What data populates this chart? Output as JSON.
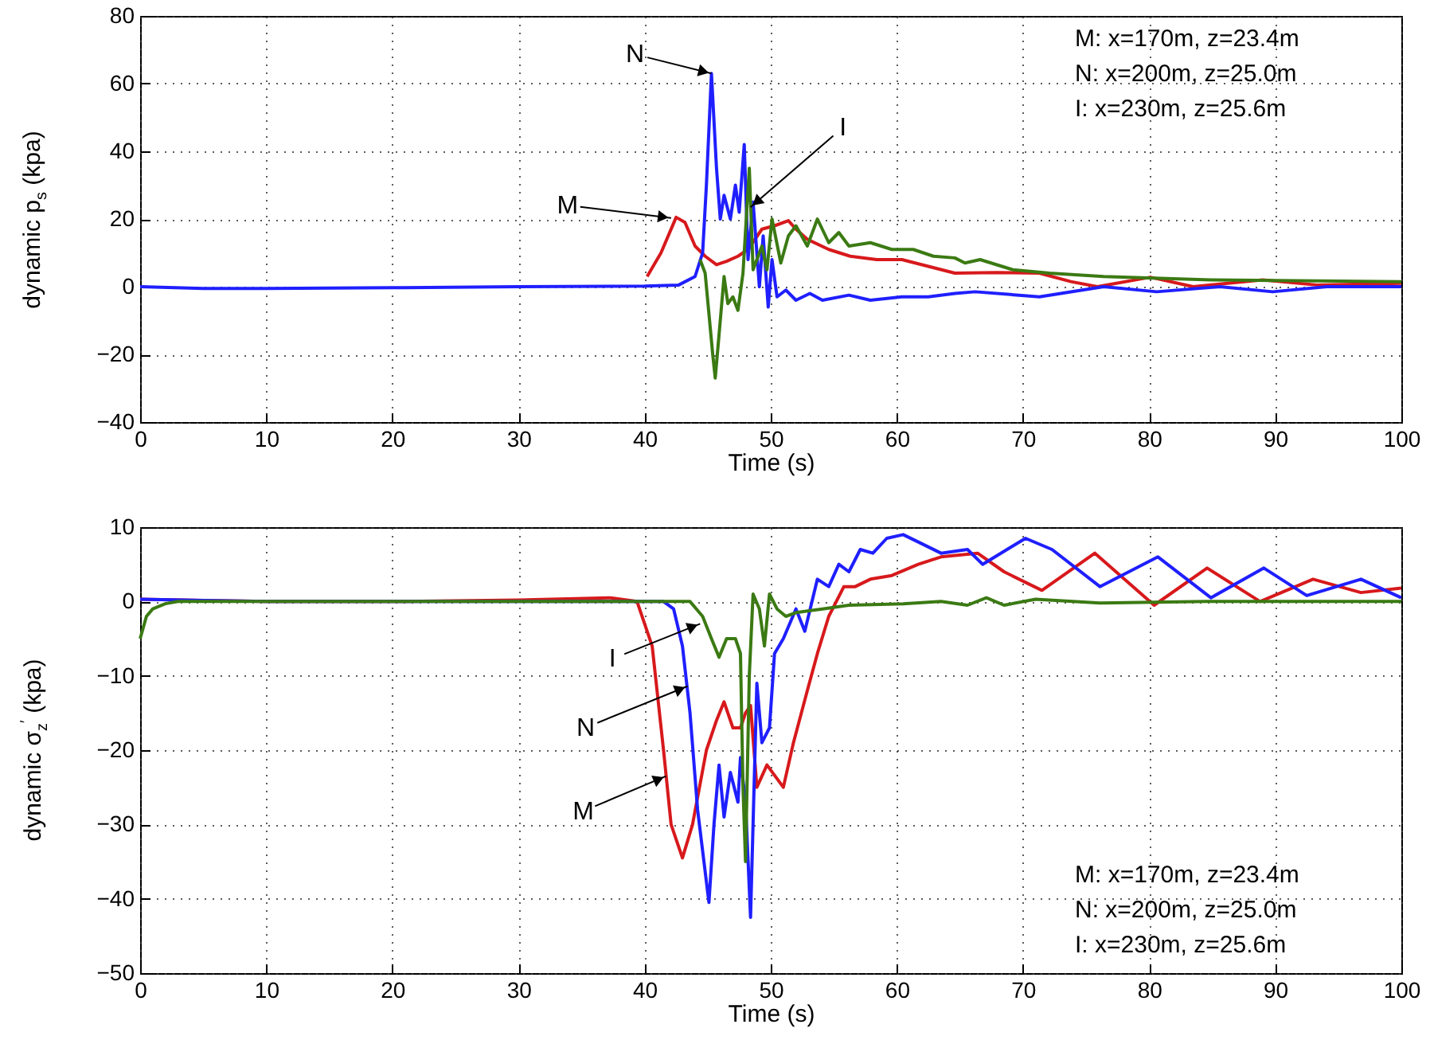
{
  "chart_data": [
    {
      "type": "line",
      "xlabel": "Time  (s)",
      "ylabel": "dynamic p$_{s}$ (kpa)",
      "xlim": [
        0,
        100
      ],
      "xticks": [
        0,
        10,
        20,
        30,
        40,
        50,
        60,
        70,
        80,
        90,
        100
      ],
      "ylim": [
        -40,
        80
      ],
      "yticks": [
        -40,
        -20,
        0,
        20,
        40,
        60,
        80
      ],
      "grid": true,
      "annotations": [
        "M: x=170m, z=23.4m",
        "N: x=200m, z=25.0m",
        "I:  x=230m, z=25.6m",
        {
          "text": "N",
          "x": 45.3,
          "y": 63
        },
        {
          "text": "M",
          "x": 42.1,
          "y": 20.3
        },
        {
          "text": "I",
          "x": 48.4,
          "y": 23.5
        }
      ],
      "series": [
        {
          "color": "#d7191c",
          "x": [
            40.2,
            41.3,
            42.5,
            43.2,
            44,
            44.8,
            45.7,
            46.5,
            47.4,
            48.2,
            49.3,
            50.3,
            51.4,
            52,
            52.9,
            54.6,
            56.3,
            58.4,
            60.4,
            62.5,
            64.6,
            67.9,
            71.3,
            73.8,
            75.9,
            80.1,
            83.5,
            89,
            93.3,
            100
          ],
          "values": [
            3,
            10,
            20.5,
            19,
            12,
            9,
            6.5,
            7.5,
            9,
            11,
            17,
            18,
            19.5,
            17,
            14,
            11,
            9,
            8,
            8,
            6,
            4,
            4.2,
            4,
            1.5,
            0,
            2.8,
            0,
            2,
            0.5,
            1
          ]
        },
        {
          "color": "#1f1fff",
          "x": [
            0,
            5,
            10,
            20,
            30,
            40,
            42.7,
            44,
            44.6,
            44.9,
            45.3,
            45.7,
            46,
            46.3,
            46.8,
            47.2,
            47.5,
            47.9,
            48.2,
            48.6,
            49.1,
            49.4,
            49.8,
            50.1,
            50.5,
            51.2,
            52,
            53.1,
            54.1,
            56.2,
            57.9,
            60.4,
            62.5,
            64.6,
            66.2,
            71.3,
            76.4,
            80.6,
            85.6,
            89.8,
            94.1,
            100
          ],
          "values": [
            0,
            -0.5,
            -0.5,
            -0.3,
            0,
            0.2,
            0.5,
            3,
            10,
            30,
            63,
            35,
            20,
            27,
            20,
            30,
            22,
            42,
            8,
            25,
            0,
            15,
            -6,
            8,
            -3,
            -1,
            -4,
            -2,
            -4,
            -2.5,
            -4,
            -3,
            -3,
            -2,
            -1.5,
            -3,
            0,
            -1.5,
            0,
            -1.5,
            0,
            0
          ]
        },
        {
          "color": "#3b7a13",
          "x": [
            44.4,
            44.8,
            45.4,
            45.6,
            46,
            46.3,
            46.6,
            47,
            47.4,
            47.8,
            48.3,
            48.6,
            49.3,
            49.7,
            50.1,
            50.8,
            51.4,
            52,
            52.9,
            53.7,
            54.6,
            55.4,
            56.2,
            57.9,
            59.6,
            61.3,
            62.9,
            64.6,
            65.4,
            66.6,
            69.2,
            72.1,
            76.4,
            84.9,
            100
          ],
          "values": [
            8,
            4,
            -20,
            -27,
            -10,
            3,
            -5,
            -3,
            -7,
            4,
            35,
            5,
            12,
            5,
            20,
            7,
            15,
            18,
            12,
            20,
            13,
            16,
            12,
            13,
            11,
            11,
            9,
            8.5,
            7,
            8,
            5,
            4,
            3,
            2,
            1.5
          ]
        }
      ]
    },
    {
      "type": "line",
      "xlabel": "Time  (s)",
      "ylabel": "dynamic σ$_{z}$$^{′}$ (kpa)",
      "xlim": [
        0,
        100
      ],
      "xticks": [
        0,
        10,
        20,
        30,
        40,
        50,
        60,
        70,
        80,
        90,
        100
      ],
      "ylim": [
        -50,
        10
      ],
      "yticks": [
        -50,
        -40,
        -30,
        -20,
        -10,
        0,
        10
      ],
      "grid": true,
      "annotations": [
        "M: x=170m, z=23.4m",
        "N: x=200m, z=25.0m",
        "I:  x=230m, z=25.6m",
        {
          "text": "I",
          "x": 44.4,
          "y": -3
        },
        {
          "text": "N",
          "x": 43.4,
          "y": -11.4
        },
        {
          "text": "M",
          "x": 41.7,
          "y": -23.5
        }
      ],
      "series": [
        {
          "color": "#d7191c",
          "x": [
            0,
            10,
            20,
            30,
            37.3,
            39.4,
            40.6,
            41.5,
            42.1,
            43,
            43.8,
            44.9,
            45.7,
            46.3,
            47,
            47.6,
            48,
            48.4,
            48.9,
            49.7,
            51,
            51.8,
            52.9,
            53.7,
            54.6,
            55.8,
            56.7,
            57.9,
            59.6,
            61.7,
            63.5,
            66.4,
            68.5,
            71.5,
            75.7,
            80.4,
            84.6,
            88.8,
            93,
            96.8,
            100
          ],
          "values": [
            0.3,
            0,
            0,
            0.2,
            0.5,
            0,
            -6,
            -20,
            -30,
            -34.5,
            -30,
            -20,
            -16,
            -13.5,
            -17,
            -17,
            -15,
            -14,
            -25,
            -22,
            -25,
            -19,
            -12,
            -7,
            -2,
            2,
            2,
            3,
            3.5,
            5,
            6,
            6.5,
            4,
            1.5,
            6.5,
            -0.5,
            4.5,
            0,
            3,
            1.2,
            1.8
          ]
        },
        {
          "color": "#1f1fff",
          "x": [
            0,
            10,
            20,
            30,
            41.5,
            42.3,
            43,
            43.6,
            44.2,
            45.1,
            45.5,
            45.9,
            46.3,
            46.8,
            47.4,
            47.6,
            48,
            48.4,
            48.9,
            49.3,
            49.9,
            50.3,
            51,
            52,
            52.7,
            53.7,
            54.6,
            55.4,
            56.2,
            57.1,
            58.1,
            59.2,
            60.5,
            61.7,
            63.5,
            65.6,
            66.8,
            70.2,
            72.3,
            76.1,
            80.7,
            84.9,
            89.1,
            92.5,
            96.8,
            100
          ],
          "values": [
            0.3,
            0,
            0,
            0,
            0,
            -1,
            -6,
            -15,
            -28,
            -40.5,
            -30,
            -22,
            -29,
            -23,
            -27,
            -21,
            -27,
            -42.5,
            -11,
            -19,
            -17,
            -7,
            -5,
            -1,
            -4,
            3,
            2,
            5,
            4,
            7,
            6.5,
            8.5,
            9,
            8,
            6.5,
            7,
            5,
            8.5,
            7,
            2,
            6,
            0.5,
            4.5,
            0.8,
            3,
            0.5
          ]
        },
        {
          "color": "#3b7a13",
          "x": [
            0,
            0.5,
            1,
            2,
            3,
            10,
            20,
            30,
            43.6,
            44.6,
            45.3,
            45.9,
            46.5,
            47.2,
            47.6,
            47.8,
            48,
            48.3,
            48.6,
            49.1,
            49.5,
            49.9,
            50.5,
            51.2,
            52,
            54.1,
            56.2,
            60.5,
            63.5,
            65.6,
            67.1,
            68.5,
            71,
            76.1,
            84.6,
            100
          ],
          "values": [
            -5,
            -2,
            -1,
            -0.3,
            0,
            0,
            0,
            0,
            0,
            -2,
            -5,
            -7.5,
            -5,
            -5,
            -7,
            -25,
            -35,
            -10,
            1,
            -1,
            -6,
            1,
            -1,
            -2,
            -1.5,
            -1,
            -0.5,
            -0.3,
            0,
            -0.5,
            0.5,
            -0.5,
            0.3,
            -0.2,
            0,
            0
          ]
        }
      ]
    }
  ]
}
